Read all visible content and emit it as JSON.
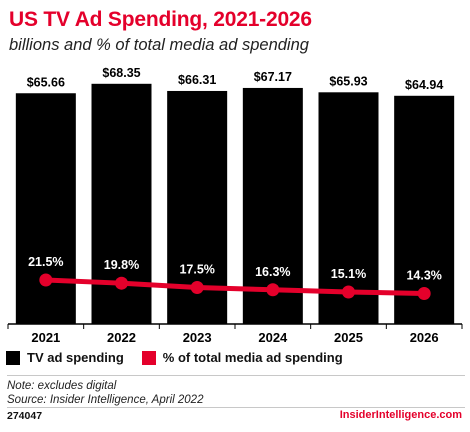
{
  "title": "US TV Ad Spending, 2021-2026",
  "subtitle": "billions and % of total media ad spending",
  "chart_data": {
    "type": "bar",
    "categories": [
      "2021",
      "2022",
      "2023",
      "2024",
      "2025",
      "2026"
    ],
    "series": [
      {
        "name": "TV ad spending",
        "type": "bar",
        "values": [
          65.66,
          68.35,
          66.31,
          67.17,
          65.93,
          64.94
        ],
        "labels": [
          "$65.66",
          "$68.35",
          "$66.31",
          "$67.17",
          "$65.93",
          "$64.94"
        ],
        "color": "#000000"
      },
      {
        "name": "% of total media ad spending",
        "type": "line",
        "values": [
          21.5,
          19.8,
          17.5,
          16.3,
          15.1,
          14.3
        ],
        "labels": [
          "21.5%",
          "19.8%",
          "17.5%",
          "16.3%",
          "15.1%",
          "14.3%"
        ],
        "color": "#e4002b"
      }
    ],
    "grid": true,
    "legend": "bottom-left"
  },
  "legend": {
    "bar_label": "TV ad spending",
    "line_label": "% of total media ad spending"
  },
  "notes": {
    "note": "Note: excludes digital",
    "source": "Source: Insider Intelligence, April 2022"
  },
  "footer": {
    "chart_id": "274047",
    "brand": "InsiderIntelligence.com"
  }
}
